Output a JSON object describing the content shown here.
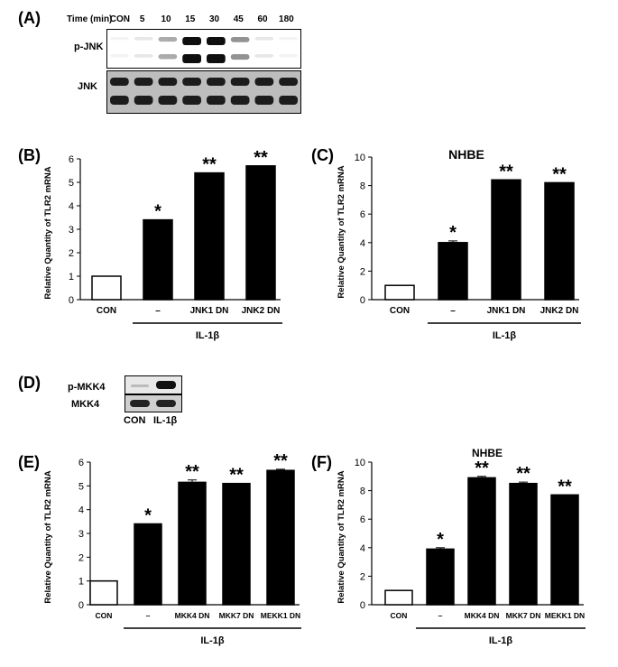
{
  "panelA": {
    "label": "(A)",
    "time_label": "Time (min)",
    "lanes": [
      "CON",
      "5",
      "10",
      "15",
      "30",
      "45",
      "60",
      "180"
    ],
    "top_blot_label": "p-JNK",
    "bottom_blot_label": "JNK",
    "pjnk_intensity": [
      0.05,
      0.1,
      0.35,
      1.0,
      1.0,
      0.45,
      0.1,
      0.05
    ]
  },
  "panelD": {
    "label": "(D)",
    "top_blot_label": "p-MKK4",
    "bottom_blot_label": "MKK4",
    "lanes": [
      "CON",
      "IL-1β"
    ]
  },
  "chart_data": [
    {
      "id": "B",
      "label": "(B)",
      "type": "bar",
      "title": "",
      "ylabel": "Relative Quantity of TLR2 mRNA",
      "ylim": [
        0,
        6
      ],
      "yticks": [
        0,
        1,
        2,
        3,
        4,
        5,
        6
      ],
      "categories": [
        "CON",
        "–",
        "JNK1 DN",
        "JNK2 DN"
      ],
      "values": [
        1.0,
        3.4,
        5.4,
        5.7
      ],
      "errors": [
        0,
        0,
        0,
        0
      ],
      "fills": [
        "#ffffff",
        "#000000",
        "#000000",
        "#000000"
      ],
      "significance": [
        "",
        "*",
        "**",
        "**"
      ],
      "group_label": "IL-1β"
    },
    {
      "id": "C",
      "label": "(C)",
      "type": "bar",
      "title": "NHBE",
      "ylabel": "Relative Quantity of TLR2 mRNA",
      "ylim": [
        0,
        10
      ],
      "yticks": [
        0,
        2,
        4,
        6,
        8,
        10
      ],
      "categories": [
        "CON",
        "–",
        "JNK1 DN",
        "JNK2 DN"
      ],
      "values": [
        1.0,
        4.0,
        8.4,
        8.2
      ],
      "errors": [
        0,
        0.12,
        0,
        0
      ],
      "fills": [
        "#ffffff",
        "#000000",
        "#000000",
        "#000000"
      ],
      "significance": [
        "",
        "*",
        "**",
        "**"
      ],
      "group_label": "IL-1β"
    },
    {
      "id": "E",
      "label": "(E)",
      "type": "bar",
      "title": "",
      "ylabel": "Relative Quantity of TLR2 mRNA",
      "ylim": [
        0,
        6
      ],
      "yticks": [
        0,
        1,
        2,
        3,
        4,
        5,
        6
      ],
      "categories": [
        "CON",
        "–",
        "MKK4 DN",
        "MKK7 DN",
        "MEKK1 DN"
      ],
      "values": [
        1.0,
        3.4,
        5.15,
        5.1,
        5.65
      ],
      "errors": [
        0,
        0,
        0.1,
        0,
        0.05
      ],
      "fills": [
        "#ffffff",
        "#000000",
        "#000000",
        "#000000",
        "#000000"
      ],
      "significance": [
        "",
        "*",
        "**",
        "**",
        "**"
      ],
      "group_label": "IL-1β"
    },
    {
      "id": "F",
      "label": "(F)",
      "type": "bar",
      "title": "NHBE",
      "ylabel": "Relative Quantity of TLR2 mRNA",
      "ylim": [
        0,
        10
      ],
      "yticks": [
        0,
        2,
        4,
        6,
        8,
        10
      ],
      "categories": [
        "CON",
        "–",
        "MKK4 DN",
        "MKK7 DN",
        "MEKK1 DN"
      ],
      "values": [
        1.0,
        3.9,
        8.9,
        8.5,
        7.7
      ],
      "errors": [
        0,
        0.1,
        0.1,
        0.1,
        0
      ],
      "fills": [
        "#ffffff",
        "#000000",
        "#000000",
        "#000000",
        "#000000"
      ],
      "significance": [
        "",
        "*",
        "**",
        "**",
        "**"
      ],
      "group_label": "IL-1β"
    }
  ]
}
